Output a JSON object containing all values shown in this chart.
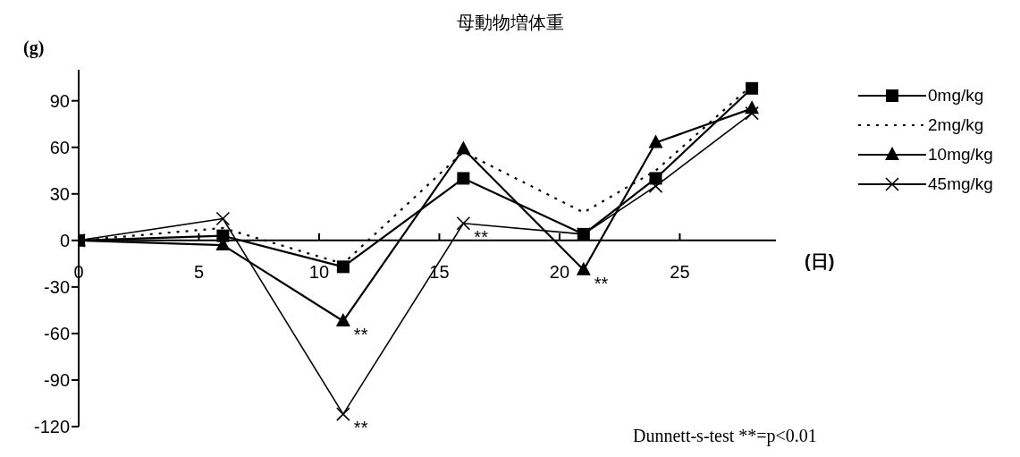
{
  "chart_data": {
    "type": "line",
    "title": "母動物増体重",
    "ylabel": "(g)",
    "xlabel": "(日)",
    "x": [
      0,
      6,
      11,
      16,
      21,
      24,
      28
    ],
    "series": [
      {
        "name": "0mg/kg",
        "color": "#000000",
        "marker": "square",
        "line_style": "solid",
        "values": [
          0,
          3,
          -17,
          40,
          4,
          40,
          98
        ]
      },
      {
        "name": "2mg/kg",
        "color": "#000000",
        "marker": "none",
        "line_style": "dotted",
        "values": [
          0,
          8,
          -15,
          57,
          18,
          45,
          100
        ]
      },
      {
        "name": "10mg/kg",
        "color": "#000000",
        "marker": "triangle",
        "line_style": "solid",
        "values": [
          0,
          -3,
          -52,
          59,
          -19,
          63,
          85
        ]
      },
      {
        "name": "45mg/kg",
        "color": "#000000",
        "marker": "cross",
        "line_style": "solid",
        "values": [
          0,
          14,
          -112,
          11,
          4,
          35,
          82
        ]
      }
    ],
    "xlim": [
      0,
      29
    ],
    "xticks": [
      0,
      5,
      10,
      15,
      20,
      25
    ],
    "ylim": [
      -120,
      110
    ],
    "yticks": [
      -120,
      -90,
      -60,
      -30,
      0,
      30,
      60,
      90
    ],
    "grid": false,
    "legend": "right",
    "annotations": [
      {
        "text": "**",
        "x": 11,
        "y": -52
      },
      {
        "text": "**",
        "x": 11,
        "y": -112
      },
      {
        "text": "**",
        "x": 16,
        "y": 11
      },
      {
        "text": "**",
        "x": 21,
        "y": -19
      },
      "Dunnett-s-test **=p<0.01"
    ]
  }
}
